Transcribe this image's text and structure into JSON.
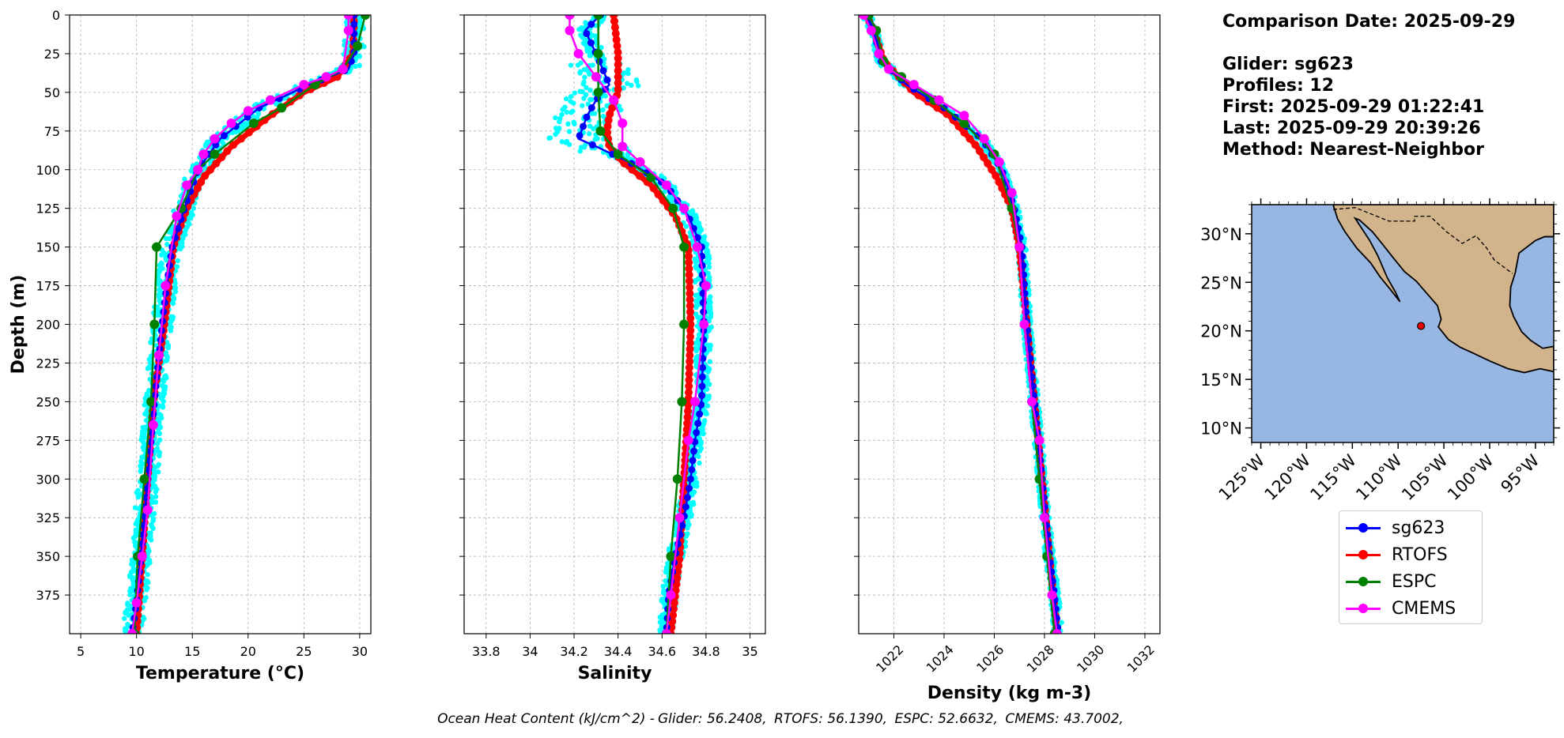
{
  "info": {
    "comparison_date": "Comparison Date: 2025-09-29",
    "glider": "Glider: sg623",
    "profiles": "Profiles: 12",
    "first": "First: 2025-09-29 01:22:41",
    "last": "Last: 2025-09-29 20:39:26",
    "method": "Method: Nearest-Neighbor"
  },
  "footer": {
    "label": "Ocean Heat Content (kJ/cm^2) -",
    "glider": "Glider: 56.2408,",
    "rtofs": "RTOFS: 56.1390,",
    "espc": "ESPC: 52.6632,",
    "cmems": "CMEMS: 43.7002,"
  },
  "legend": [
    {
      "name": "sg623",
      "color": "#0000ff"
    },
    {
      "name": "RTOFS",
      "color": "#ff0000"
    },
    {
      "name": "ESPC",
      "color": "#008000"
    },
    {
      "name": "CMEMS",
      "color": "#ff00ff"
    }
  ],
  "colors": {
    "glider_scatter": "#00ffff",
    "ocean": "#97b6e1",
    "land": "#d2b48c",
    "grid": "#b0b0b0"
  },
  "chart_data": [
    {
      "type": "line",
      "xlabel": "Temperature (°C)",
      "ylabel": "Depth (m)",
      "xlim": [
        4,
        31
      ],
      "ylim": [
        400,
        0
      ],
      "xticks": [
        5,
        10,
        15,
        20,
        25,
        30
      ],
      "yticks": [
        0,
        25,
        50,
        75,
        100,
        125,
        150,
        175,
        200,
        225,
        250,
        275,
        300,
        325,
        350,
        375
      ],
      "grid": true,
      "series": [
        {
          "name": "sg623",
          "x": [
            29.5,
            29.5,
            29.0,
            25.5,
            21.0,
            17.5,
            15.5,
            14.3,
            13.2,
            12.7,
            12.3,
            11.6,
            11.0,
            10.4,
            10.0,
            9.6
          ],
          "y": [
            0,
            25,
            35,
            45,
            60,
            80,
            100,
            125,
            150,
            175,
            200,
            250,
            300,
            350,
            380,
            400
          ]
        },
        {
          "name": "RTOFS",
          "x": [
            29.5,
            29.4,
            28.0,
            25.0,
            22.0,
            18.5,
            16.0,
            14.5,
            13.3,
            12.5,
            11.5,
            10.5,
            10.0
          ],
          "y": [
            0,
            25,
            40,
            50,
            65,
            85,
            105,
            125,
            150,
            200,
            250,
            350,
            400
          ]
        },
        {
          "name": "ESPC",
          "x": [
            30.5,
            29.8,
            28.5,
            26.0,
            23.0,
            20.5,
            17.0,
            15.5,
            14.0,
            11.8,
            11.6,
            11.3,
            10.7,
            10.1,
            9.8
          ],
          "y": [
            0,
            20,
            35,
            45,
            60,
            70,
            90,
            100,
            125,
            150,
            200,
            250,
            300,
            350,
            400
          ]
        },
        {
          "name": "CMEMS",
          "x": [
            29.0,
            29.0,
            28.5,
            27.0,
            25.0,
            22.0,
            20.0,
            18.5,
            17.0,
            16.0,
            15.5,
            14.5,
            13.6,
            12.6,
            12.0,
            11.5,
            11.0,
            10.5,
            10.0,
            9.6
          ],
          "y": [
            0,
            10,
            35,
            40,
            45,
            55,
            62,
            70,
            80,
            90,
            100,
            110,
            130,
            175,
            220,
            265,
            320,
            350,
            380,
            400
          ]
        }
      ]
    },
    {
      "type": "line",
      "xlabel": "Salinity",
      "ylim": [
        400,
        0
      ],
      "xlim": [
        33.7,
        35.07
      ],
      "xticks": [
        33.8,
        34.0,
        34.2,
        34.4,
        34.6,
        34.8,
        35.0
      ],
      "grid": true,
      "series": [
        {
          "name": "sg623",
          "x": [
            34.32,
            34.25,
            34.3,
            34.36,
            34.3,
            34.26,
            34.22,
            34.3,
            34.45,
            34.62,
            34.72,
            34.78,
            34.79,
            34.78,
            34.75,
            34.73,
            34.7,
            34.66,
            34.63,
            34.62
          ],
          "y": [
            0,
            10,
            25,
            45,
            55,
            65,
            80,
            85,
            95,
            110,
            130,
            150,
            200,
            250,
            275,
            300,
            325,
            350,
            375,
            400
          ]
        },
        {
          "name": "RTOFS",
          "x": [
            34.38,
            34.4,
            34.4,
            34.36,
            34.35,
            34.36,
            34.42,
            34.55,
            34.66,
            34.72,
            34.73,
            34.72,
            34.7,
            34.68,
            34.66,
            34.64
          ],
          "y": [
            0,
            25,
            50,
            65,
            75,
            85,
            95,
            110,
            130,
            150,
            200,
            250,
            300,
            350,
            375,
            400
          ]
        },
        {
          "name": "ESPC",
          "x": [
            34.31,
            34.31,
            34.31,
            34.32,
            34.4,
            34.55,
            34.65,
            34.7,
            34.7,
            34.69,
            34.67,
            34.64,
            34.62
          ],
          "y": [
            0,
            25,
            50,
            75,
            90,
            105,
            125,
            150,
            200,
            250,
            300,
            350,
            400
          ]
        },
        {
          "name": "CMEMS",
          "x": [
            34.18,
            34.18,
            34.22,
            34.3,
            34.38,
            34.42,
            34.42,
            34.5,
            34.62,
            34.7,
            34.76,
            34.8,
            34.79,
            34.75,
            34.72,
            34.68,
            34.64,
            34.62
          ],
          "y": [
            0,
            10,
            25,
            40,
            55,
            70,
            85,
            95,
            110,
            125,
            150,
            175,
            200,
            250,
            275,
            325,
            375,
            400
          ]
        }
      ]
    },
    {
      "type": "line",
      "xlabel": "Density (kg m-3)",
      "ylim": [
        400,
        0
      ],
      "xlim": [
        1020.6,
        1032.6
      ],
      "xticks": [
        1022,
        1024,
        1026,
        1028,
        1030,
        1032
      ],
      "grid": true,
      "series": [
        {
          "name": "sg623",
          "x": [
            1020.9,
            1021.2,
            1021.5,
            1022.5,
            1024.0,
            1025.5,
            1026.3,
            1026.8,
            1027.1,
            1027.3,
            1027.6,
            1027.9,
            1028.2,
            1028.4,
            1028.55
          ],
          "y": [
            0,
            10,
            30,
            45,
            60,
            80,
            100,
            125,
            150,
            200,
            250,
            300,
            350,
            375,
            400
          ]
        },
        {
          "name": "RTOFS",
          "x": [
            1020.9,
            1021.2,
            1021.6,
            1022.8,
            1024.2,
            1025.3,
            1026.1,
            1026.7,
            1027.0,
            1027.3,
            1027.6,
            1027.9,
            1028.2,
            1028.5
          ],
          "y": [
            0,
            10,
            30,
            50,
            65,
            85,
            105,
            125,
            150,
            200,
            250,
            300,
            350,
            400
          ]
        },
        {
          "name": "ESPC",
          "x": [
            1021.0,
            1021.3,
            1021.6,
            1022.3,
            1023.6,
            1024.8,
            1026.0,
            1026.7,
            1027.0,
            1027.2,
            1027.5,
            1027.8,
            1028.1,
            1028.4
          ],
          "y": [
            0,
            10,
            30,
            40,
            55,
            70,
            90,
            125,
            150,
            200,
            250,
            300,
            350,
            400
          ]
        },
        {
          "name": "CMEMS",
          "x": [
            1020.8,
            1021.1,
            1021.4,
            1021.8,
            1022.8,
            1023.8,
            1024.8,
            1025.6,
            1026.2,
            1026.7,
            1027.0,
            1027.2,
            1027.5,
            1027.8,
            1028.0,
            1028.3,
            1028.5
          ],
          "y": [
            0,
            10,
            25,
            35,
            45,
            55,
            65,
            80,
            95,
            115,
            150,
            200,
            250,
            275,
            325,
            375,
            400
          ]
        }
      ]
    },
    {
      "type": "map",
      "lon_range": [
        -126,
        -93
      ],
      "lat_range": [
        8.5,
        33
      ],
      "lon_ticks": [
        -125,
        -120,
        -115,
        -110,
        -105,
        -100,
        -95
      ],
      "lon_tick_labels": [
        "125°W",
        "120°W",
        "115°W",
        "110°W",
        "105°W",
        "100°W",
        "95°W"
      ],
      "lat_ticks": [
        10,
        15,
        20,
        25,
        30
      ],
      "lat_tick_labels": [
        "10°N",
        "15°N",
        "20°N",
        "25°N",
        "30°N"
      ],
      "glider_position": {
        "lon": -107.5,
        "lat": 20.5
      }
    }
  ]
}
